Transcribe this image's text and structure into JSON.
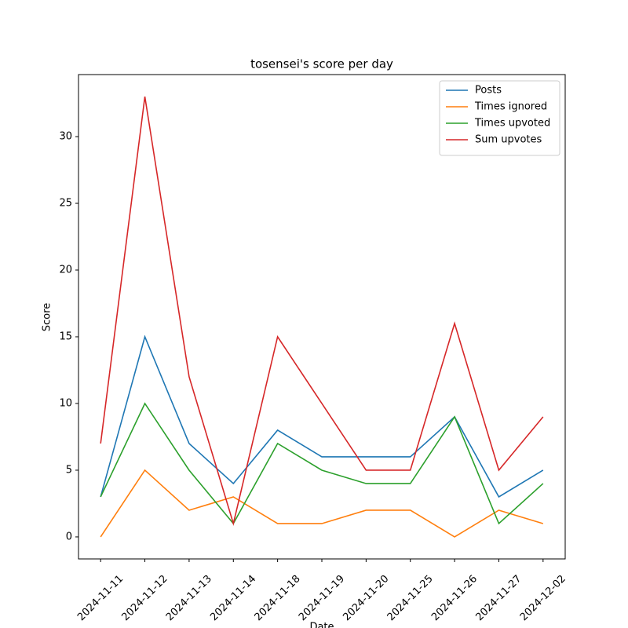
{
  "chart_data": {
    "type": "line",
    "title": "tosensei's score per day",
    "xlabel": "Date",
    "ylabel": "Score",
    "categories": [
      "2024-11-11",
      "2024-11-12",
      "2024-11-13",
      "2024-11-14",
      "2024-11-18",
      "2024-11-19",
      "2024-11-20",
      "2024-11-25",
      "2024-11-26",
      "2024-11-27",
      "2024-12-02"
    ],
    "series": [
      {
        "name": "Posts",
        "color": "#1f77b4",
        "values": [
          3,
          15,
          7,
          4,
          8,
          6,
          6,
          6,
          9,
          3,
          5
        ]
      },
      {
        "name": "Times ignored",
        "color": "#ff7f0e",
        "values": [
          0,
          5,
          2,
          3,
          1,
          1,
          2,
          2,
          0,
          2,
          1
        ]
      },
      {
        "name": "Times upvoted",
        "color": "#2ca02c",
        "values": [
          3,
          10,
          5,
          1,
          7,
          5,
          4,
          4,
          9,
          1,
          4
        ]
      },
      {
        "name": "Sum upvotes",
        "color": "#d62728",
        "values": [
          7,
          33,
          12,
          1,
          15,
          10,
          5,
          5,
          16,
          5,
          9
        ]
      }
    ],
    "ylim": [
      -1.65,
      34.65
    ],
    "yticks": [
      0,
      5,
      10,
      15,
      20,
      25,
      30
    ],
    "legend": "upper right",
    "grid": false
  }
}
